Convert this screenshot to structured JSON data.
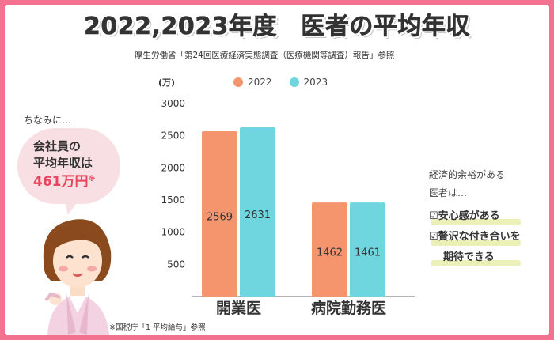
{
  "title": "2022,2023年度　医者の平均年収",
  "source": "厚生労働省「第24回医療経済実態調査（医療機関等調査）報告」参照",
  "aside": {
    "intro": "ちなみに…",
    "bubble_line1": "会社員の",
    "bubble_line2": "平均年収は",
    "bubble_amount": "461万円",
    "bubble_note": "※",
    "footnote": "※国税庁「1 平均給与」参照"
  },
  "side_text": {
    "line1": "経済的余裕がある",
    "line2": "医者は…",
    "check1": "☑安心感がある",
    "check2": "☑贅沢な付き合いを",
    "check3": "期待できる"
  },
  "colors": {
    "accent": "#f3728f",
    "series_2022": "#f5956e",
    "series_2023": "#6fd6e0"
  },
  "chart_data": {
    "type": "bar",
    "unit_label": "(万)",
    "categories": [
      "開業医",
      "病院勤務医"
    ],
    "series": [
      {
        "name": "2022",
        "values": [
          2569,
          1462
        ]
      },
      {
        "name": "2023",
        "values": [
          2631,
          1461
        ]
      }
    ],
    "yticks": [
      500,
      1000,
      1500,
      2000,
      2500,
      3000
    ],
    "ylim": [
      0,
      3000
    ],
    "grid": false,
    "legend": "top"
  }
}
